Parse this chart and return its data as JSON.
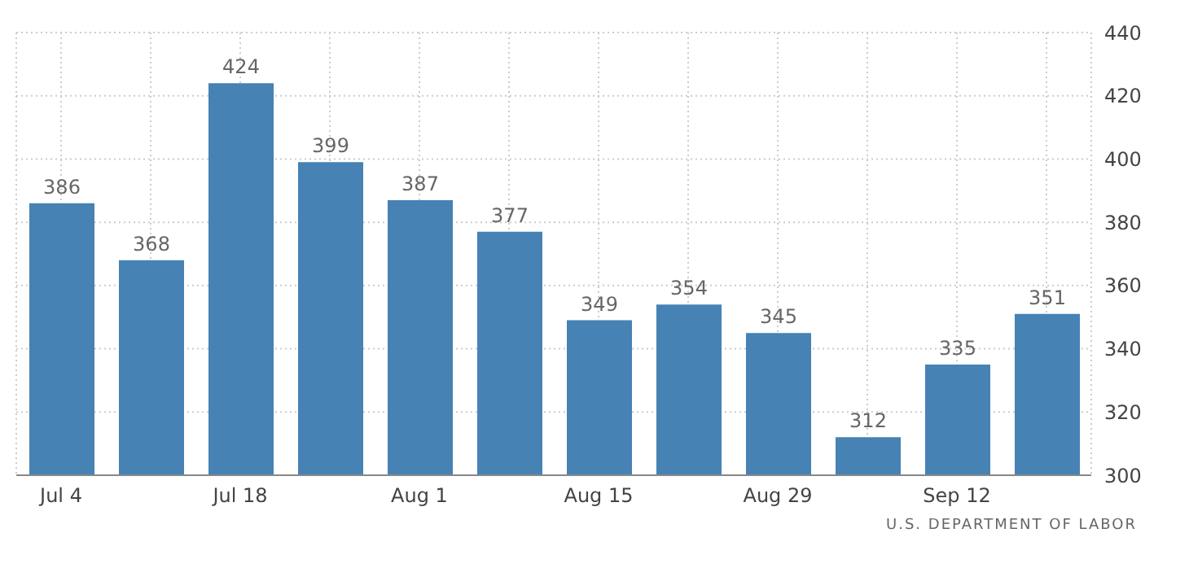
{
  "chart_data": {
    "type": "bar",
    "categories": [
      "Jul 4",
      null,
      "Jul 18",
      null,
      "Aug 1",
      null,
      "Aug 15",
      null,
      "Aug 29",
      null,
      "Sep 12",
      null
    ],
    "values": [
      386,
      368,
      424,
      399,
      387,
      377,
      349,
      354,
      345,
      312,
      335,
      351
    ],
    "color": "#4682b4",
    "ylim": [
      300,
      440
    ],
    "yticks": [
      300,
      320,
      340,
      360,
      380,
      400,
      420,
      440
    ],
    "grid": true,
    "data_labels": true,
    "annotations": [
      "U.S. DEPARTMENT OF LABOR"
    ]
  }
}
